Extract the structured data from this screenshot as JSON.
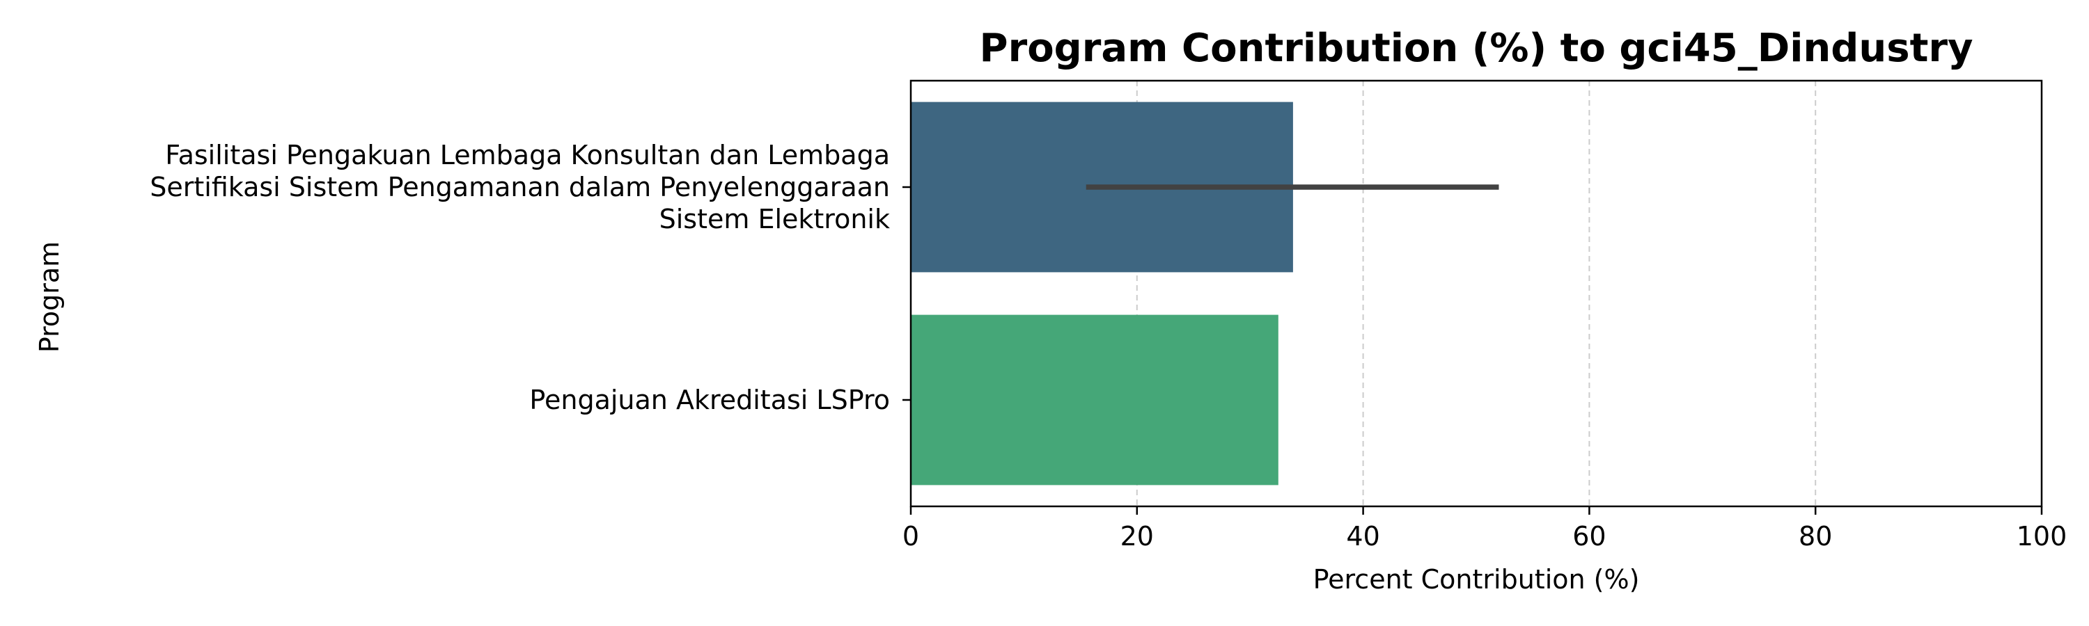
{
  "chart_data": {
    "type": "bar",
    "orientation": "horizontal",
    "title": "Program Contribution (%) to gci45_Dindustry",
    "xlabel": "Percent Contribution (%)",
    "ylabel": "Program",
    "xlim": [
      0,
      100
    ],
    "xticks": [
      0,
      20,
      40,
      60,
      80,
      100
    ],
    "grid": "x-dashed",
    "categories": [
      "Fasilitasi Pengakuan Lembaga Konsultan dan Lembaga Sertifikasi Sistem Pengamanan dalam Penyelenggaraan Sistem Elektronik",
      "Pengajuan Akreditasi LSPro"
    ],
    "category_lines": [
      [
        "Fasilitasi Pengakuan Lembaga Konsultan dan Lembaga",
        "Sertifikasi Sistem Pengamanan dalam Penyelenggaraan",
        "Sistem Elektronik"
      ],
      [
        "Pengajuan Akreditasi LSPro"
      ]
    ],
    "values": [
      33.8,
      32.5
    ],
    "error_intervals": [
      [
        15.5,
        52.0
      ],
      null
    ],
    "colors": [
      "#3e6681",
      "#45a778"
    ]
  }
}
